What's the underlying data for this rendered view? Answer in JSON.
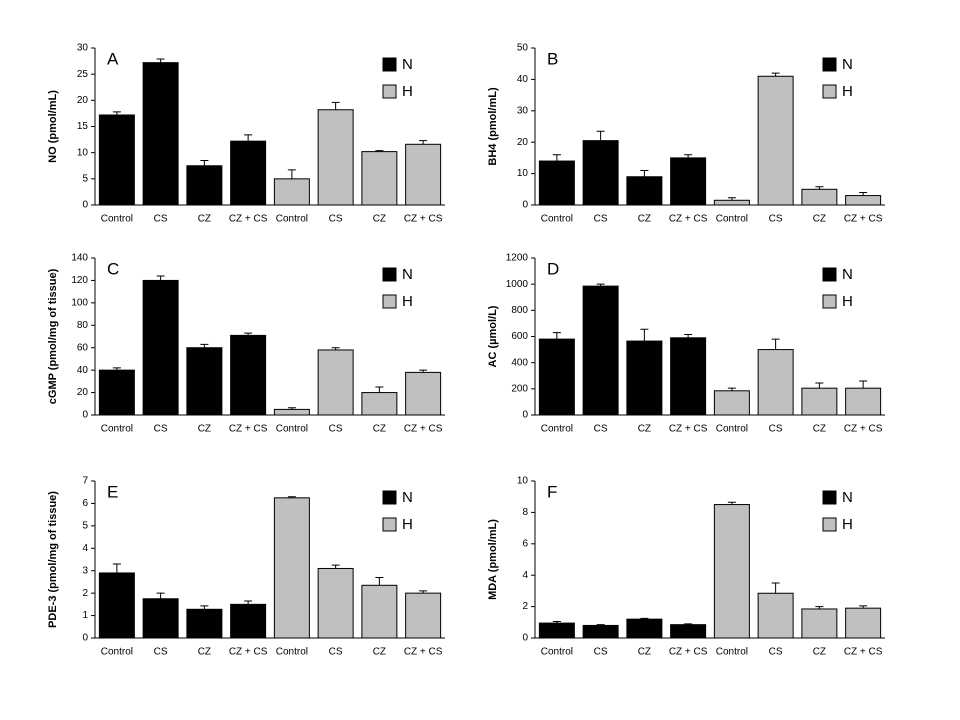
{
  "chart_data": [
    {
      "type": "bar",
      "panel": "A",
      "ylabel": "NO (pmol/mL)",
      "categories": [
        "Control",
        "CS",
        "CZ",
        "CZ + CS",
        "Control",
        "CS",
        "CZ",
        "CZ + CS"
      ],
      "series": [
        {
          "name": "N",
          "color": "#000000",
          "values": [
            17.2,
            27.2,
            7.5,
            12.2,
            null,
            null,
            null,
            null
          ],
          "errors": [
            0.6,
            0.7,
            1.0,
            1.2,
            null,
            null,
            null,
            null
          ]
        },
        {
          "name": "H",
          "color": "#c0c0c0",
          "values": [
            null,
            null,
            null,
            null,
            5.0,
            18.2,
            10.2,
            11.6
          ],
          "errors": [
            null,
            null,
            null,
            null,
            1.7,
            1.4,
            0.2,
            0.7
          ]
        }
      ],
      "ylim": [
        0,
        30
      ],
      "yticks": [
        0,
        5,
        10,
        15,
        20,
        25,
        30
      ]
    },
    {
      "type": "bar",
      "panel": "B",
      "ylabel": "BH4 (pmol/mL)",
      "categories": [
        "Control",
        "CS",
        "CZ",
        "CZ + CS",
        "Control",
        "CS",
        "CZ",
        "CZ + CS"
      ],
      "series": [
        {
          "name": "N",
          "color": "#000000",
          "values": [
            14,
            20.5,
            9,
            15,
            null,
            null,
            null,
            null
          ],
          "errors": [
            2,
            3,
            2,
            1,
            null,
            null,
            null,
            null
          ]
        },
        {
          "name": "H",
          "color": "#c0c0c0",
          "values": [
            null,
            null,
            null,
            null,
            1.5,
            41,
            5,
            3
          ],
          "errors": [
            null,
            null,
            null,
            null,
            0.8,
            1,
            0.8,
            1
          ]
        }
      ],
      "ylim": [
        0,
        50
      ],
      "yticks": [
        0,
        10,
        20,
        30,
        40,
        50
      ]
    },
    {
      "type": "bar",
      "panel": "C",
      "ylabel": "cGMP (pmol/mg of tissue)",
      "categories": [
        "Control",
        "CS",
        "CZ",
        "CZ + CS",
        "Control",
        "CS",
        "CZ",
        "CZ + CS"
      ],
      "series": [
        {
          "name": "N",
          "color": "#000000",
          "values": [
            40,
            120,
            60,
            71,
            null,
            null,
            null,
            null
          ],
          "errors": [
            2,
            4,
            3,
            2,
            null,
            null,
            null,
            null
          ]
        },
        {
          "name": "H",
          "color": "#c0c0c0",
          "values": [
            null,
            null,
            null,
            null,
            5,
            58,
            20,
            38
          ],
          "errors": [
            null,
            null,
            null,
            null,
            1.5,
            2,
            5,
            2
          ]
        }
      ],
      "ylim": [
        0,
        140
      ],
      "yticks": [
        0,
        20,
        40,
        60,
        80,
        100,
        120,
        140
      ]
    },
    {
      "type": "bar",
      "panel": "D",
      "ylabel": "AC (µmol/L)",
      "categories": [
        "Control",
        "CS",
        "CZ",
        "CZ + CS",
        "Control",
        "CS",
        "CZ",
        "CZ + CS"
      ],
      "series": [
        {
          "name": "N",
          "color": "#000000",
          "values": [
            580,
            985,
            565,
            590,
            null,
            null,
            null,
            null
          ],
          "errors": [
            50,
            15,
            90,
            25,
            null,
            null,
            null,
            null
          ]
        },
        {
          "name": "H",
          "color": "#c0c0c0",
          "values": [
            null,
            null,
            null,
            null,
            185,
            500,
            205,
            205
          ],
          "errors": [
            null,
            null,
            null,
            null,
            20,
            80,
            40,
            55
          ]
        }
      ],
      "ylim": [
        0,
        1200
      ],
      "yticks": [
        0,
        200,
        400,
        600,
        800,
        1000,
        1200
      ]
    },
    {
      "type": "bar",
      "panel": "E",
      "ylabel": "PDE-3 (pmol/mg of tissue)",
      "categories": [
        "Control",
        "CS",
        "CZ",
        "CZ + CS",
        "Control",
        "CS",
        "CZ",
        "CZ + CS"
      ],
      "series": [
        {
          "name": "N",
          "color": "#000000",
          "values": [
            2.9,
            1.75,
            1.28,
            1.5,
            null,
            null,
            null,
            null
          ],
          "errors": [
            0.4,
            0.25,
            0.15,
            0.15,
            null,
            null,
            null,
            null
          ]
        },
        {
          "name": "H",
          "color": "#c0c0c0",
          "values": [
            null,
            null,
            null,
            null,
            6.25,
            3.1,
            2.35,
            2.0
          ],
          "errors": [
            null,
            null,
            null,
            null,
            0.05,
            0.15,
            0.35,
            0.1
          ]
        }
      ],
      "ylim": [
        0,
        7
      ],
      "yticks": [
        0,
        1,
        2,
        3,
        4,
        5,
        6,
        7
      ]
    },
    {
      "type": "bar",
      "panel": "F",
      "ylabel": "MDA (pmol/mL)",
      "categories": [
        "Control",
        "CS",
        "CZ",
        "CZ + CS",
        "Control",
        "CS",
        "CZ",
        "CZ + CS"
      ],
      "series": [
        {
          "name": "N",
          "color": "#000000",
          "values": [
            0.95,
            0.8,
            1.2,
            0.85,
            null,
            null,
            null,
            null
          ],
          "errors": [
            0.1,
            0.05,
            0.05,
            0.05,
            null,
            null,
            null,
            null
          ]
        },
        {
          "name": "H",
          "color": "#c0c0c0",
          "values": [
            null,
            null,
            null,
            null,
            8.5,
            2.85,
            1.85,
            1.9
          ],
          "errors": [
            null,
            null,
            null,
            null,
            0.15,
            0.65,
            0.15,
            0.15
          ]
        }
      ],
      "ylim": [
        0,
        10
      ],
      "yticks": [
        0,
        2,
        4,
        6,
        8,
        10
      ]
    }
  ]
}
